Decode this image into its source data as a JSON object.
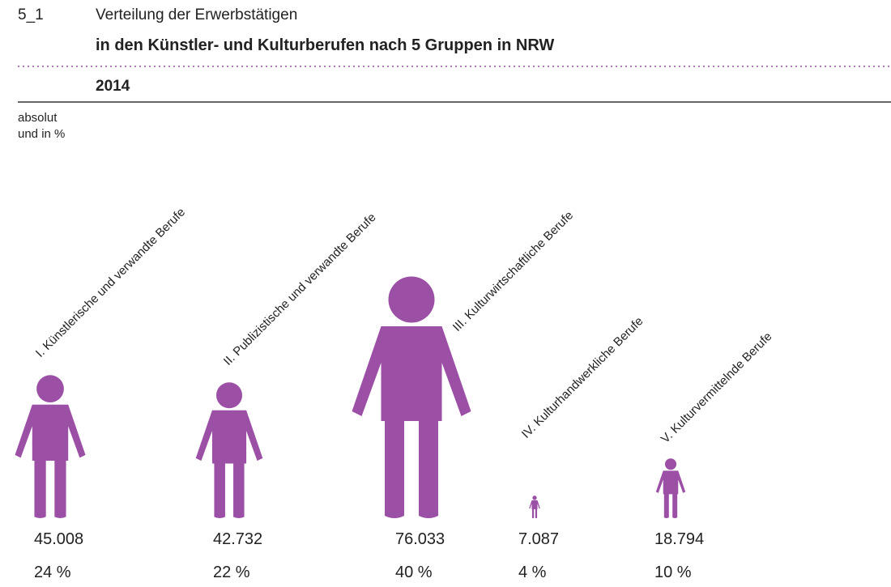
{
  "chart_data": {
    "type": "pictograph",
    "figure_number": "5_1",
    "title": "Verteilung der Erwerbstätigen",
    "subtitle": "in den Künstler- und Kulturberufen nach 5 Gruppen in NRW",
    "year": "2014",
    "unit_label": [
      "absolut",
      "und in %"
    ],
    "categories": [
      "I. Künstlerische und verwandte Berufe",
      "II. Publizistische und verwandte Berufe",
      "III. Kulturwirtschaftliche Berufe",
      "IV. Kulturhandwerkliche Berufe",
      "V. Kulturvermittelnde Berufe"
    ],
    "values": [
      45008,
      42732,
      76033,
      7087,
      18794
    ],
    "value_labels": [
      "45.008",
      "42.732",
      "76.033",
      "7.087",
      "18.794"
    ],
    "percentages": [
      24,
      22,
      40,
      4,
      10
    ],
    "percentage_labels": [
      "24 %",
      "22 %",
      "40 %",
      "4 %",
      "10 %"
    ],
    "color": "#9b4fa5"
  }
}
